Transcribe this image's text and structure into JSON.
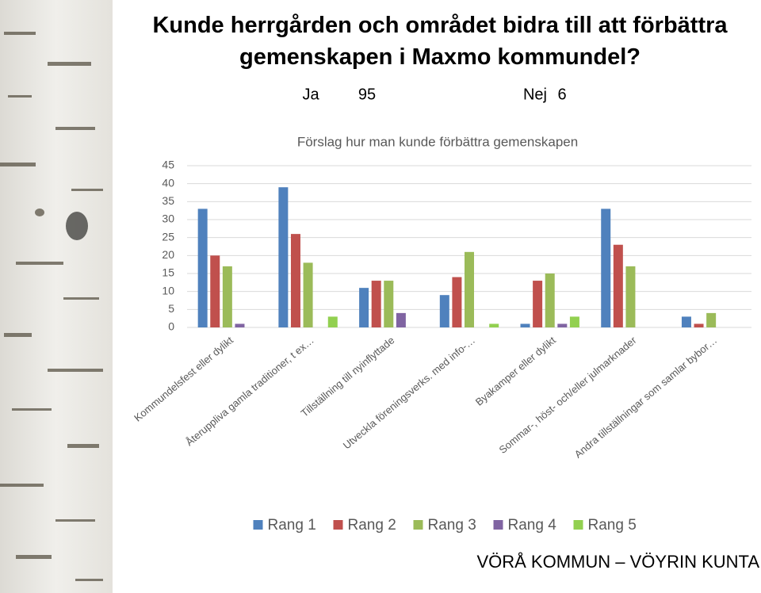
{
  "slide": {
    "title": "Kunde herrgården och området bidra till att förbättra gemenskapen i Maxmo kommundel?",
    "ja_label": "Ja",
    "ja_count": 95,
    "nej_label": "Nej",
    "nej_count": 6,
    "footer": "VÖRÅ KOMMUN – VÖYRIN KUNTA"
  },
  "chart_data": {
    "type": "bar",
    "title": "Förslag hur man kunde förbättra gemenskapen",
    "categories": [
      "Kommundelsfest eller dylikt",
      "Återuppliva gamla traditioner, t ex…",
      "Tillställning till nyinflyttade",
      "Utveckla föreningsverks. med info-…",
      "Byakamper eller dylikt",
      "Sommar-, höst- och/eller julmarknader",
      "Andra tillställningar som samlar bybor…"
    ],
    "series": [
      {
        "name": "Rang 1",
        "color": "#4f81bd",
        "values": [
          33,
          39,
          11,
          9,
          1,
          33,
          3
        ]
      },
      {
        "name": "Rang 2",
        "color": "#c0504d",
        "values": [
          20,
          26,
          13,
          14,
          13,
          23,
          1
        ]
      },
      {
        "name": "Rang 3",
        "color": "#9bbb59",
        "values": [
          17,
          18,
          13,
          21,
          15,
          17,
          4
        ]
      },
      {
        "name": "Rang 4",
        "color": "#8064a2",
        "values": [
          1,
          0,
          4,
          0,
          1,
          0,
          0
        ]
      },
      {
        "name": "Rang 5",
        "color": "#92d050",
        "values": [
          0,
          3,
          0,
          1,
          3,
          0,
          0
        ]
      }
    ],
    "ylim": [
      0,
      45
    ],
    "yticks": [
      0,
      5,
      10,
      15,
      20,
      25,
      30,
      35,
      40,
      45
    ],
    "grid": true,
    "legend": "bottom"
  }
}
